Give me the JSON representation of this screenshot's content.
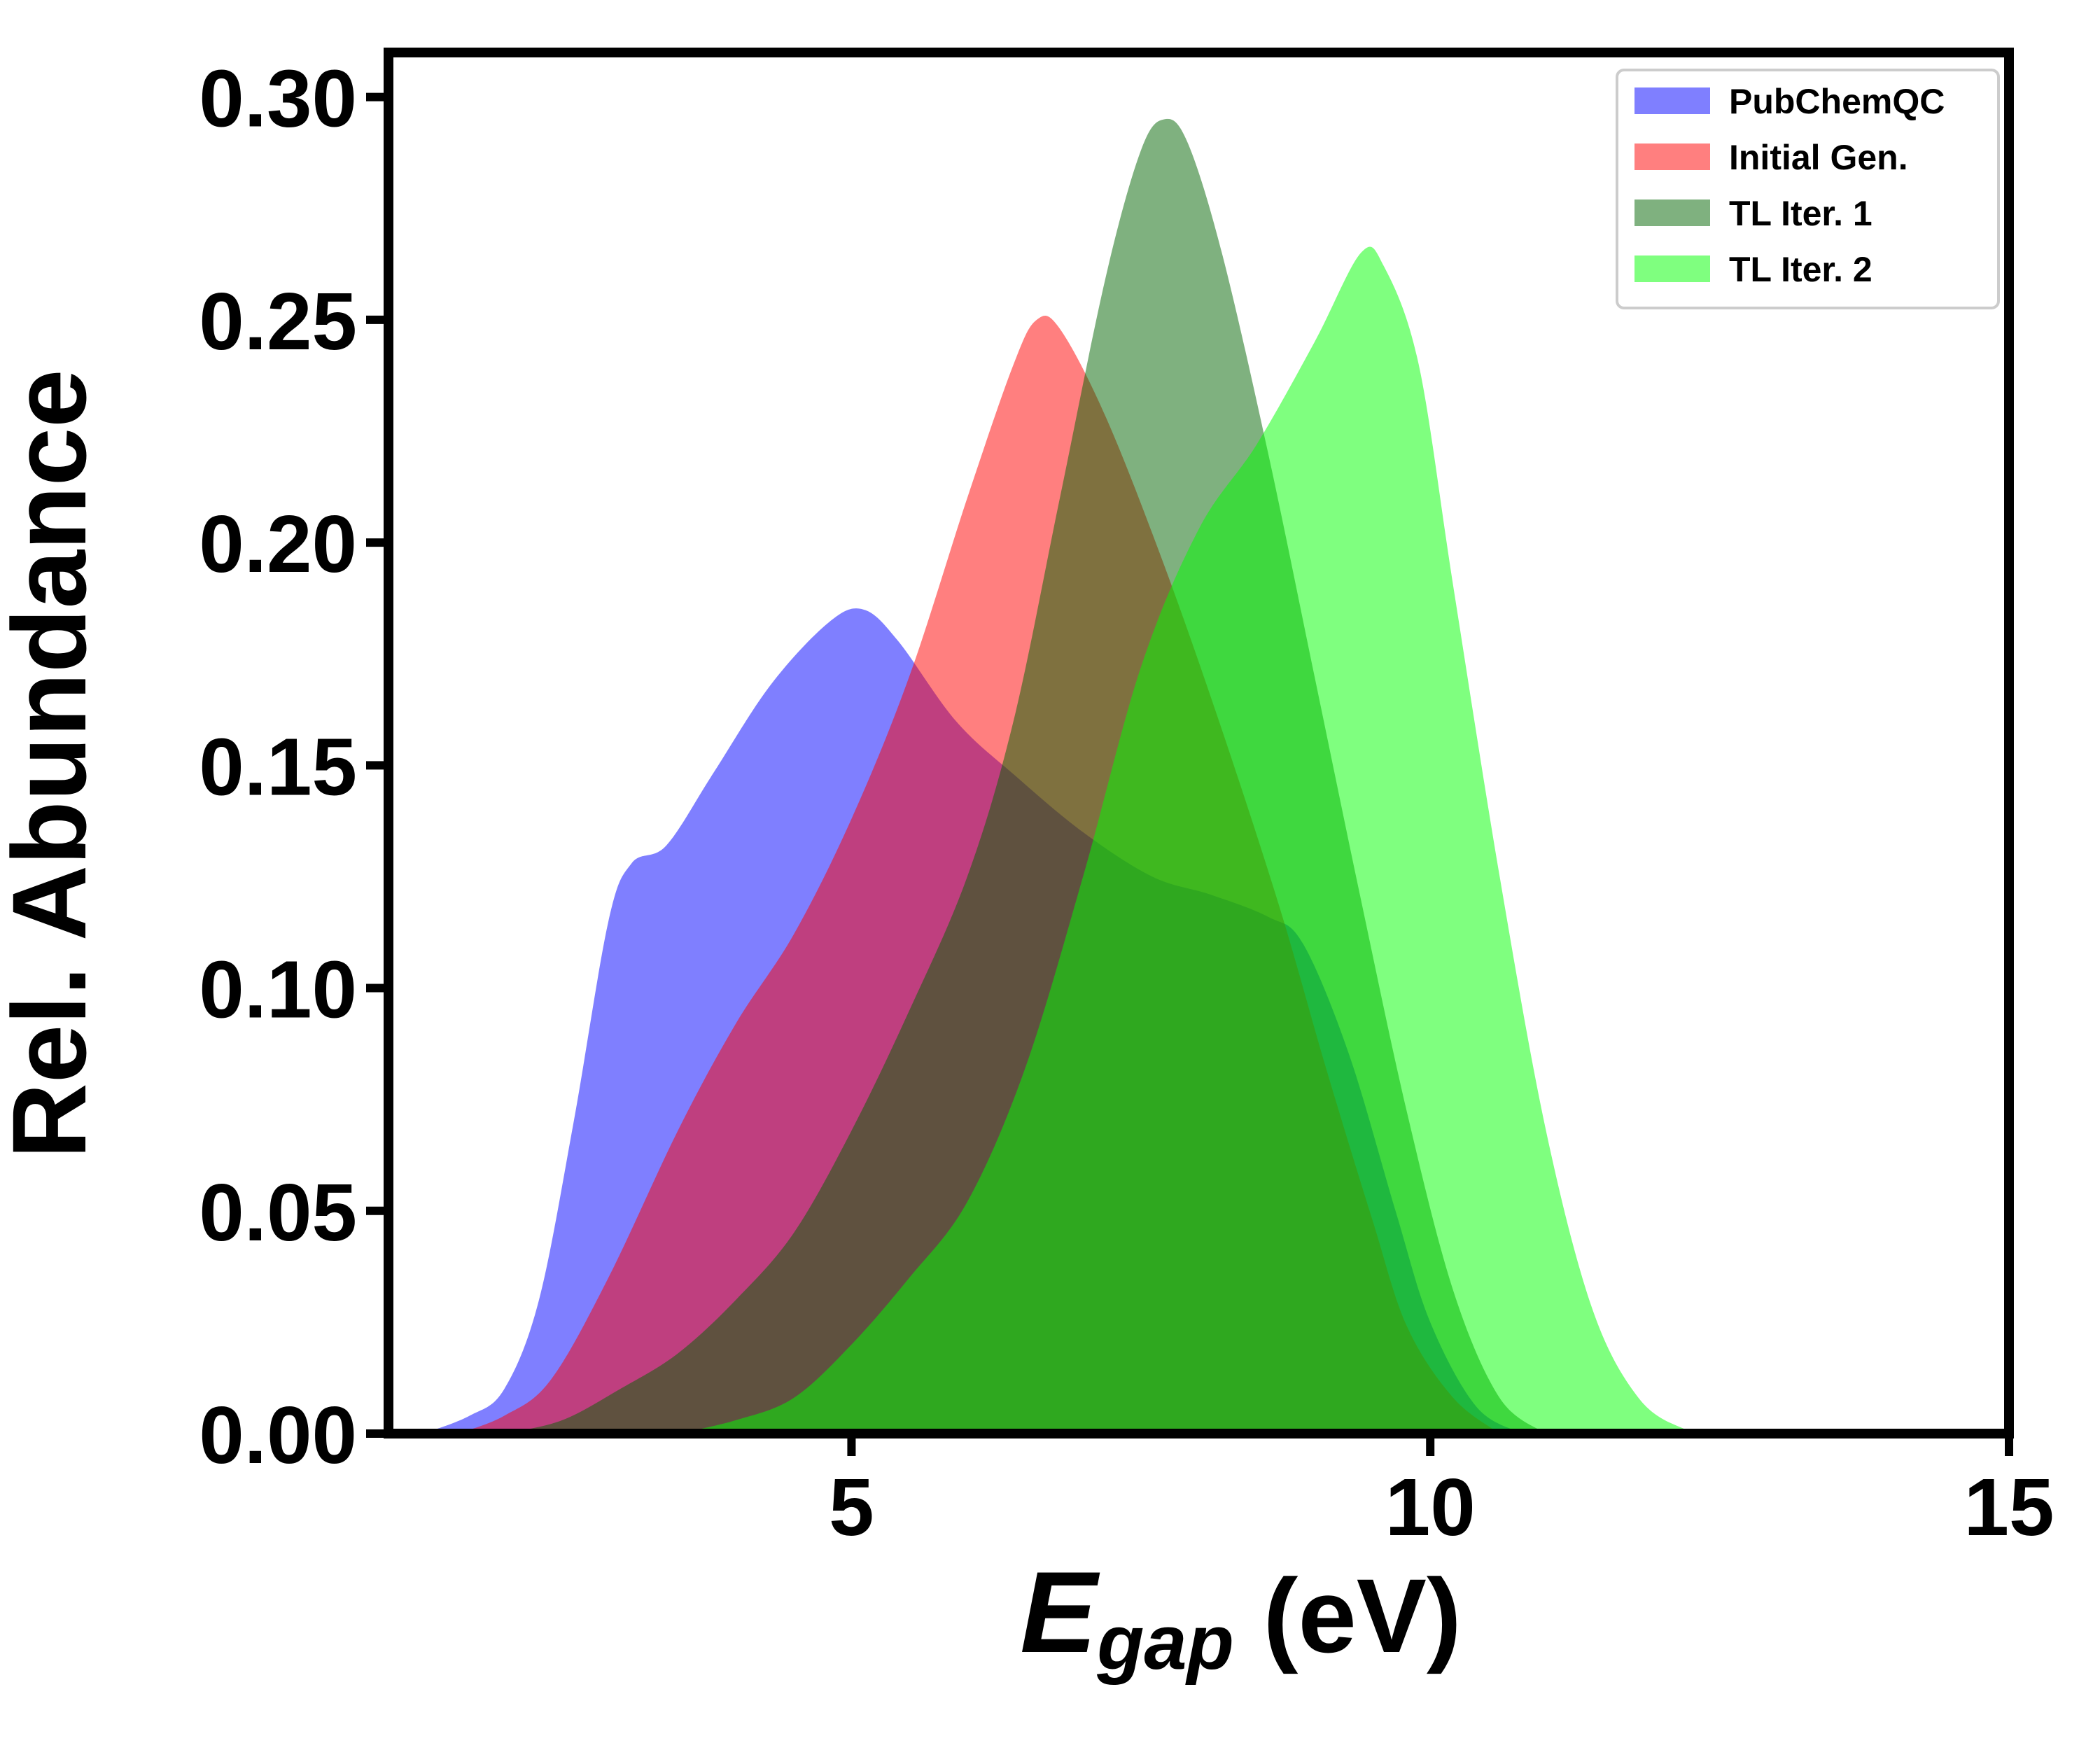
{
  "chart_data": {
    "type": "area",
    "title": "",
    "xlabel": {
      "main": "E",
      "sub": "gap",
      "unit": " (eV)"
    },
    "ylabel": "Rel. Abundance",
    "xlim": [
      1,
      15
    ],
    "ylim": [
      0,
      0.31
    ],
    "xticks": [
      {
        "value": 5,
        "label": "5"
      },
      {
        "value": 10,
        "label": "10"
      },
      {
        "value": 15,
        "label": "15"
      }
    ],
    "yticks": [
      {
        "value": 0.0,
        "label": "0.00"
      },
      {
        "value": 0.05,
        "label": "0.05"
      },
      {
        "value": 0.1,
        "label": "0.10"
      },
      {
        "value": 0.15,
        "label": "0.15"
      },
      {
        "value": 0.2,
        "label": "0.20"
      },
      {
        "value": 0.25,
        "label": "0.25"
      },
      {
        "value": 0.3,
        "label": "0.30"
      }
    ],
    "grid": false,
    "legend_position": "top-right",
    "series": [
      {
        "name": "PubChemQC",
        "color": "#0000ff",
        "opacity": 0.5,
        "points": [
          [
            1.3,
            0.0
          ],
          [
            1.7,
            0.004
          ],
          [
            2.0,
            0.01
          ],
          [
            2.3,
            0.03
          ],
          [
            2.6,
            0.07
          ],
          [
            2.9,
            0.115
          ],
          [
            3.1,
            0.128
          ],
          [
            3.4,
            0.132
          ],
          [
            3.8,
            0.148
          ],
          [
            4.3,
            0.168
          ],
          [
            4.8,
            0.182
          ],
          [
            5.1,
            0.185
          ],
          [
            5.4,
            0.178
          ],
          [
            5.9,
            0.16
          ],
          [
            6.4,
            0.148
          ],
          [
            7.0,
            0.135
          ],
          [
            7.6,
            0.125
          ],
          [
            8.1,
            0.121
          ],
          [
            8.6,
            0.116
          ],
          [
            8.9,
            0.11
          ],
          [
            9.3,
            0.085
          ],
          [
            9.7,
            0.05
          ],
          [
            10.0,
            0.025
          ],
          [
            10.4,
            0.006
          ],
          [
            10.8,
            0.0
          ]
        ]
      },
      {
        "name": "Initial Gen.",
        "color": "#ff0000",
        "opacity": 0.5,
        "points": [
          [
            1.6,
            0.0
          ],
          [
            2.0,
            0.004
          ],
          [
            2.4,
            0.012
          ],
          [
            2.9,
            0.035
          ],
          [
            3.5,
            0.068
          ],
          [
            4.0,
            0.092
          ],
          [
            4.5,
            0.112
          ],
          [
            5.0,
            0.138
          ],
          [
            5.5,
            0.17
          ],
          [
            6.0,
            0.21
          ],
          [
            6.4,
            0.24
          ],
          [
            6.6,
            0.25
          ],
          [
            6.8,
            0.248
          ],
          [
            7.2,
            0.228
          ],
          [
            7.7,
            0.195
          ],
          [
            8.2,
            0.158
          ],
          [
            8.7,
            0.118
          ],
          [
            9.1,
            0.082
          ],
          [
            9.5,
            0.048
          ],
          [
            9.8,
            0.024
          ],
          [
            10.2,
            0.008
          ],
          [
            10.6,
            0.0
          ]
        ]
      },
      {
        "name": "TL Iter. 1",
        "color": "#006400",
        "opacity": 0.5,
        "points": [
          [
            2.0,
            0.0
          ],
          [
            2.5,
            0.003
          ],
          [
            3.0,
            0.01
          ],
          [
            3.5,
            0.018
          ],
          [
            4.0,
            0.03
          ],
          [
            4.5,
            0.045
          ],
          [
            5.0,
            0.068
          ],
          [
            5.5,
            0.095
          ],
          [
            6.0,
            0.125
          ],
          [
            6.4,
            0.16
          ],
          [
            6.8,
            0.21
          ],
          [
            7.2,
            0.26
          ],
          [
            7.5,
            0.288
          ],
          [
            7.7,
            0.295
          ],
          [
            7.9,
            0.29
          ],
          [
            8.2,
            0.265
          ],
          [
            8.6,
            0.22
          ],
          [
            9.0,
            0.17
          ],
          [
            9.4,
            0.12
          ],
          [
            9.8,
            0.072
          ],
          [
            10.2,
            0.032
          ],
          [
            10.6,
            0.008
          ],
          [
            11.0,
            0.0
          ]
        ]
      },
      {
        "name": "TL Iter. 2",
        "color": "#00ff00",
        "opacity": 0.5,
        "points": [
          [
            3.5,
            0.0
          ],
          [
            4.0,
            0.003
          ],
          [
            4.5,
            0.008
          ],
          [
            5.0,
            0.02
          ],
          [
            5.5,
            0.035
          ],
          [
            6.0,
            0.052
          ],
          [
            6.5,
            0.082
          ],
          [
            7.0,
            0.125
          ],
          [
            7.5,
            0.172
          ],
          [
            8.0,
            0.203
          ],
          [
            8.5,
            0.222
          ],
          [
            9.0,
            0.245
          ],
          [
            9.4,
            0.265
          ],
          [
            9.6,
            0.262
          ],
          [
            9.9,
            0.24
          ],
          [
            10.2,
            0.19
          ],
          [
            10.6,
            0.125
          ],
          [
            11.0,
            0.068
          ],
          [
            11.4,
            0.028
          ],
          [
            11.8,
            0.008
          ],
          [
            12.2,
            0.001
          ],
          [
            12.5,
            0.0
          ]
        ]
      }
    ]
  }
}
